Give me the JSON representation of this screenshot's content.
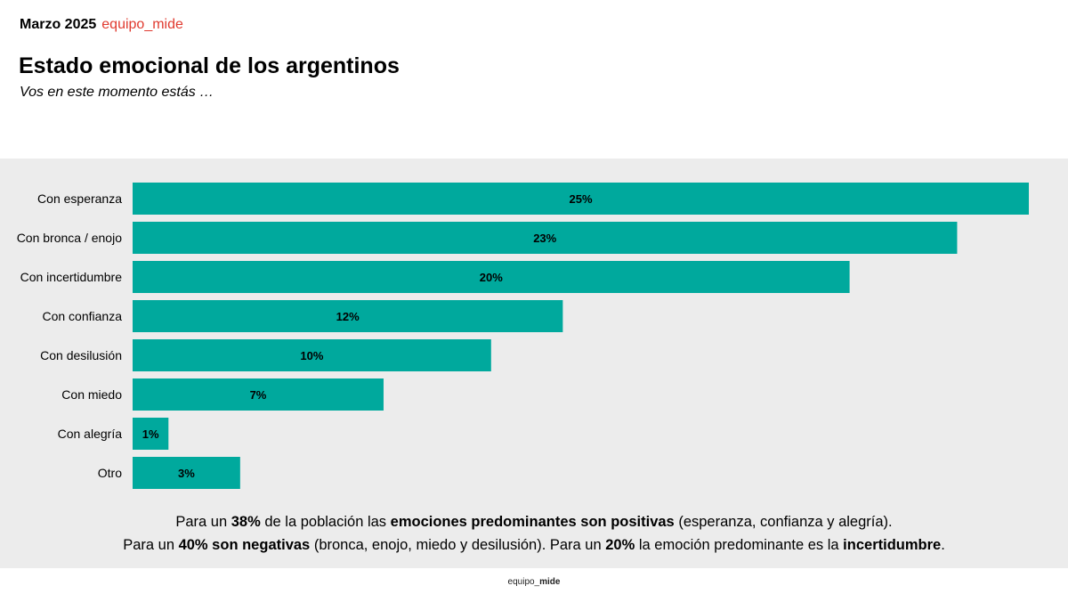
{
  "header": {
    "date": "Marzo 2025",
    "brand": "equipo_mide",
    "brand_color": "#e03a2f"
  },
  "title": "Estado emocional de los argentinos",
  "subtitle": "Vos en este momento estás …",
  "chart_data": {
    "type": "bar",
    "orientation": "horizontal",
    "categories": [
      "Con esperanza",
      "Con bronca / enojo",
      "Con incertidumbre",
      "Con confianza",
      "Con desilusión",
      "Con miedo",
      "Con alegría",
      "Otro"
    ],
    "values": [
      25,
      23,
      20,
      12,
      10,
      7,
      1,
      3
    ],
    "data_labels": [
      "25%",
      "23%",
      "20%",
      "12%",
      "10%",
      "7%",
      "1%",
      "3%"
    ],
    "bar_color": "#00a99d",
    "background": "#ececec",
    "grid": false
  },
  "notes": [
    [
      {
        "t": "Para un ",
        "b": false
      },
      {
        "t": "38%",
        "b": true
      },
      {
        "t": " de la población las ",
        "b": false
      },
      {
        "t": "emociones predominantes son positivas",
        "b": true
      },
      {
        "t": " (esperanza, confianza y alegría).",
        "b": false
      }
    ],
    [
      {
        "t": "Para un ",
        "b": false
      },
      {
        "t": "40% son negativas",
        "b": true
      },
      {
        "t": " (bronca, enojo, miedo y desilusión). Para un ",
        "b": false
      },
      {
        "t": "20%",
        "b": true
      },
      {
        "t": " la emoción predominante es la ",
        "b": false
      },
      {
        "t": "incertidumbre",
        "b": true
      },
      {
        "t": ".",
        "b": false
      }
    ]
  ],
  "footer": {
    "logo_a": "equipo_",
    "logo_b": "mide"
  }
}
